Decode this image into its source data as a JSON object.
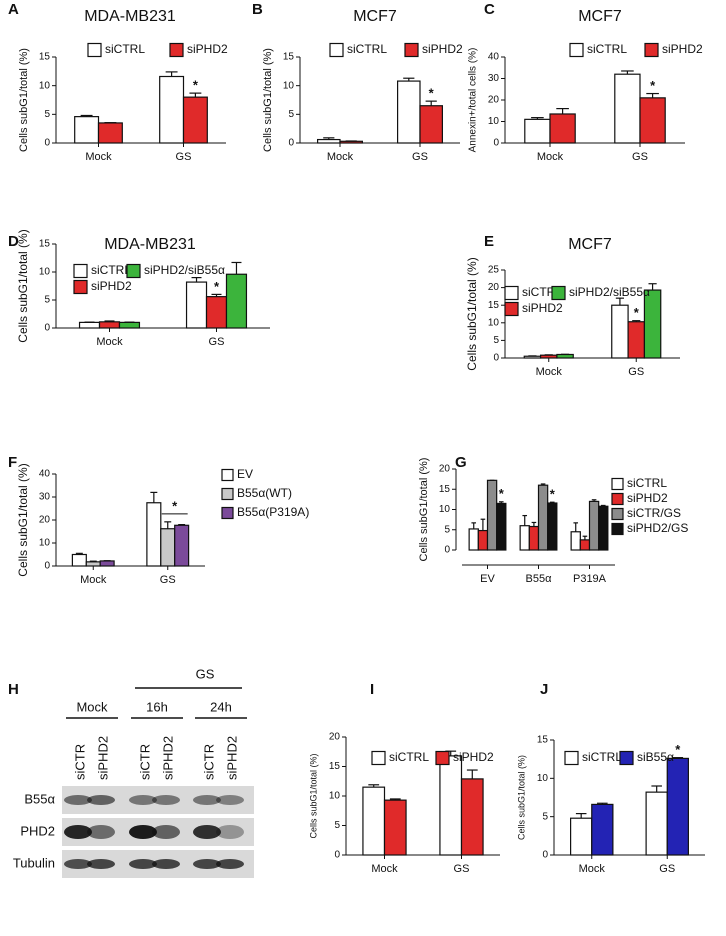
{
  "chart_data": [
    {
      "type": "bar",
      "panel": "A",
      "title": "MDA-MB231",
      "ylabel": "Cells subG1/total (%)",
      "categories": [
        "Mock",
        "GS"
      ],
      "ylim": [
        0,
        15
      ],
      "yticks": [
        0,
        5,
        10,
        15
      ],
      "series": [
        {
          "name": "siCTRL",
          "color": "#ffffff",
          "values": [
            4.6,
            11.6
          ],
          "errors": [
            0.2,
            0.8
          ],
          "marks": [
            null,
            null
          ]
        },
        {
          "name": "siPHD2",
          "color": "#e02a2a",
          "values": [
            3.5,
            8.0
          ],
          "errors": [
            0.05,
            0.7
          ],
          "marks": [
            null,
            "*"
          ]
        }
      ]
    },
    {
      "type": "bar",
      "panel": "B",
      "title": "MCF7",
      "ylabel": "Cells subG1/total (%)",
      "categories": [
        "Mock",
        "GS"
      ],
      "ylim": [
        0,
        15
      ],
      "yticks": [
        0,
        5,
        10,
        15
      ],
      "series": [
        {
          "name": "siCTRL",
          "color": "#ffffff",
          "values": [
            0.6,
            10.8
          ],
          "errors": [
            0.3,
            0.5
          ],
          "marks": [
            null,
            null
          ]
        },
        {
          "name": "siPHD2",
          "color": "#e02a2a",
          "values": [
            0.3,
            6.5
          ],
          "errors": [
            0.05,
            0.8
          ],
          "marks": [
            null,
            "*"
          ]
        }
      ]
    },
    {
      "type": "bar",
      "panel": "C",
      "title": "MCF7",
      "ylabel": "Annexin+/total cells (%)",
      "categories": [
        "Mock",
        "GS"
      ],
      "ylim": [
        0,
        40
      ],
      "yticks": [
        0,
        10,
        20,
        30,
        40
      ],
      "series": [
        {
          "name": "siCTRL",
          "color": "#ffffff",
          "values": [
            11,
            32
          ],
          "errors": [
            0.8,
            1.5
          ],
          "marks": [
            null,
            null
          ]
        },
        {
          "name": "siPHD2",
          "color": "#e02a2a",
          "values": [
            13.5,
            21
          ],
          "errors": [
            2.5,
            2
          ],
          "marks": [
            null,
            "*"
          ]
        }
      ]
    },
    {
      "type": "bar",
      "panel": "D",
      "title": "MDA-MB231",
      "ylabel": "Cells subG1/total (%)",
      "categories": [
        "Mock",
        "GS"
      ],
      "ylim": [
        0,
        15
      ],
      "yticks": [
        0,
        5,
        10,
        15
      ],
      "series": [
        {
          "name": "siCTRL",
          "color": "#ffffff",
          "values": [
            1.0,
            8.2
          ],
          "errors": [
            0.05,
            0.8
          ],
          "marks": [
            null,
            null
          ]
        },
        {
          "name": "siPHD2",
          "color": "#e02a2a",
          "values": [
            1.1,
            5.6
          ],
          "errors": [
            0.15,
            0.4
          ],
          "marks": [
            null,
            "*"
          ]
        },
        {
          "name": "siPHD2/siB55α",
          "color": "#3cb43c",
          "values": [
            1.0,
            9.6
          ],
          "errors": [
            0.05,
            2.1
          ],
          "marks": [
            null,
            null
          ]
        }
      ]
    },
    {
      "type": "bar",
      "panel": "E",
      "title": "MCF7",
      "ylabel": "Cells subG1/total (%)",
      "categories": [
        "Mock",
        "GS"
      ],
      "ylim": [
        0,
        25
      ],
      "yticks": [
        0,
        5,
        10,
        15,
        20,
        25
      ],
      "series": [
        {
          "name": "siCTRL",
          "color": "#ffffff",
          "values": [
            0.5,
            15
          ],
          "errors": [
            0.1,
            2
          ],
          "marks": [
            null,
            null
          ]
        },
        {
          "name": "siPHD2",
          "color": "#e02a2a",
          "values": [
            0.8,
            10.3
          ],
          "errors": [
            0.1,
            0.3
          ],
          "marks": [
            null,
            "*"
          ]
        },
        {
          "name": "siPHD2/siB55α",
          "color": "#3cb43c",
          "values": [
            1.0,
            19.3
          ],
          "errors": [
            0.05,
            1.8
          ],
          "marks": [
            null,
            null
          ]
        }
      ]
    },
    {
      "type": "bar",
      "panel": "F",
      "ylabel": "Cells subG1/total (%)",
      "categories": [
        "Mock",
        "GS"
      ],
      "ylim": [
        0,
        40
      ],
      "yticks": [
        0,
        10,
        20,
        30,
        40
      ],
      "series": [
        {
          "name": "EV",
          "color": "#ffffff",
          "values": [
            5,
            27.5
          ],
          "errors": [
            0.5,
            4.5
          ],
          "marks": [
            null,
            null
          ]
        },
        {
          "name": "B55α(WT)",
          "color": "#c8c8c8",
          "values": [
            1.8,
            16.2
          ],
          "errors": [
            0.3,
            3
          ],
          "marks": [
            null,
            null
          ]
        },
        {
          "name": "B55α(P319A)",
          "color": "#7b4a9a",
          "values": [
            2.2,
            17.7
          ],
          "errors": [
            0.1,
            0.3
          ],
          "marks": [
            null,
            null
          ]
        }
      ],
      "bracket": {
        "label": "*",
        "category": "GS",
        "series": [
          "B55α(WT)",
          "B55α(P319A)"
        ]
      }
    },
    {
      "type": "bar",
      "panel": "G",
      "ylabel": "Cells subG1/total (%)",
      "categories": [
        "EV",
        "B55α",
        "P319A"
      ],
      "ylim": [
        0,
        20
      ],
      "yticks": [
        0,
        5,
        10,
        15,
        20
      ],
      "series": [
        {
          "name": "siCTRL",
          "color": "#ffffff",
          "values": [
            5.2,
            6,
            4.5
          ],
          "errors": [
            1.5,
            2.5,
            2.2
          ],
          "marks": [
            null,
            null,
            null
          ]
        },
        {
          "name": "siPHD2",
          "color": "#e02a2a",
          "values": [
            4.8,
            5.8,
            2.5
          ],
          "errors": [
            2.8,
            1,
            0.9
          ],
          "marks": [
            null,
            null,
            null
          ]
        },
        {
          "name": "siCTR/GS",
          "color": "#8c8c8c",
          "values": [
            17.2,
            16,
            12
          ],
          "errors": [
            0,
            0.3,
            0.4
          ],
          "marks": [
            null,
            null,
            null
          ]
        },
        {
          "name": "siPHD2/GS",
          "color": "#111111",
          "values": [
            11.5,
            11.6,
            10.8
          ],
          "errors": [
            0.4,
            0.2,
            0.2
          ],
          "marks": [
            "*",
            "*",
            null
          ]
        }
      ]
    },
    {
      "type": "bar",
      "panel": "I",
      "ylabel": "Cells subG1/total (%)",
      "categories": [
        "Mock",
        "GS"
      ],
      "ylim": [
        0,
        20
      ],
      "yticks": [
        0,
        5,
        10,
        15,
        20
      ],
      "series": [
        {
          "name": "siCTRL",
          "color": "#ffffff",
          "values": [
            11.5,
            16.8
          ],
          "errors": [
            0.4,
            0.8
          ],
          "marks": [
            null,
            null
          ]
        },
        {
          "name": "siPHD2",
          "color": "#e02a2a",
          "values": [
            9.3,
            12.9
          ],
          "errors": [
            0.2,
            1.5
          ],
          "marks": [
            null,
            null
          ]
        }
      ]
    },
    {
      "type": "bar",
      "panel": "J",
      "ylabel": "Cells subG1/total (%)",
      "categories": [
        "Mock",
        "GS"
      ],
      "ylim": [
        0,
        15
      ],
      "yticks": [
        0,
        5,
        10,
        15
      ],
      "series": [
        {
          "name": "siCTRL",
          "color": "#ffffff",
          "values": [
            4.8,
            8.2
          ],
          "errors": [
            0.6,
            0.8
          ],
          "marks": [
            null,
            null
          ]
        },
        {
          "name": "siB55α",
          "color": "#2323b4",
          "values": [
            6.6,
            12.6
          ],
          "errors": [
            0.15,
            0.1
          ],
          "marks": [
            null,
            "*"
          ]
        }
      ]
    }
  ],
  "blot": {
    "panel": "H",
    "group_label": "GS",
    "conditions": [
      "Mock",
      "16h",
      "24h"
    ],
    "lanes": [
      "siCTR",
      "siPHD2",
      "siCTR",
      "siPHD2",
      "siCTR",
      "siPHD2"
    ],
    "rows": [
      "B55α",
      "PHD2",
      "Tubulin"
    ]
  }
}
